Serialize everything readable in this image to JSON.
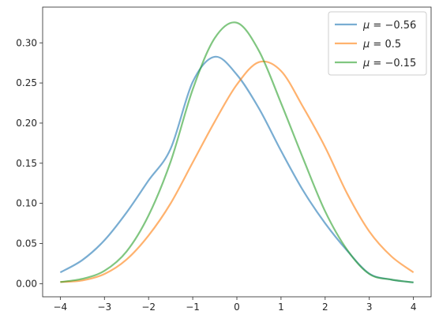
{
  "chart_data": {
    "type": "line",
    "title": "",
    "xlabel": "",
    "ylabel": "",
    "xlim": [
      -4.4,
      4.4
    ],
    "ylim": [
      -0.0164,
      0.3445
    ],
    "x_ticks": [
      -4,
      -3,
      -2,
      -1,
      0,
      1,
      2,
      3,
      4
    ],
    "y_ticks": [
      0.0,
      0.05,
      0.1,
      0.15,
      0.2,
      0.25,
      0.3
    ],
    "x_tick_labels": [
      "−4",
      "−3",
      "−2",
      "−1",
      "0",
      "1",
      "2",
      "3",
      "4"
    ],
    "y_tick_labels": [
      "0.00",
      "0.05",
      "0.10",
      "0.15",
      "0.20",
      "0.25",
      "0.30"
    ],
    "grid": false,
    "legend_position": "top-right",
    "x": [
      -4.0,
      -3.5,
      -3.0,
      -2.5,
      -2.0,
      -1.5,
      -1.0,
      -0.5,
      0.0,
      0.5,
      1.0,
      1.5,
      2.0,
      2.5,
      3.0,
      3.5,
      4.0
    ],
    "series": [
      {
        "name": "μ = −0.56",
        "legend_prefix": "μ",
        "legend_value": "−0.56",
        "color": "#1f77b4",
        "values": [
          0.014,
          0.0294,
          0.054,
          0.0885,
          0.1286,
          0.1682,
          0.2513,
          0.2826,
          0.2603,
          0.2183,
          0.1655,
          0.116,
          0.0751,
          0.041,
          0.0125,
          0.005,
          0.0015
        ]
      },
      {
        "name": "μ = 0.5",
        "legend_prefix": "μ",
        "legend_value": "0.5",
        "color": "#ff7f0e",
        "values": [
          0.002,
          0.004,
          0.012,
          0.03,
          0.06,
          0.1,
          0.151,
          0.202,
          0.248,
          0.276,
          0.265,
          0.22,
          0.17,
          0.112,
          0.065,
          0.034,
          0.014
        ]
      },
      {
        "name": "μ = −0.15",
        "legend_prefix": "μ",
        "legend_value": "−0.15",
        "color": "#2ca02c",
        "values": [
          0.002,
          0.006,
          0.016,
          0.04,
          0.085,
          0.152,
          0.242,
          0.306,
          0.325,
          0.29,
          0.225,
          0.156,
          0.09,
          0.042,
          0.012,
          0.005,
          0.0015
        ]
      }
    ]
  }
}
